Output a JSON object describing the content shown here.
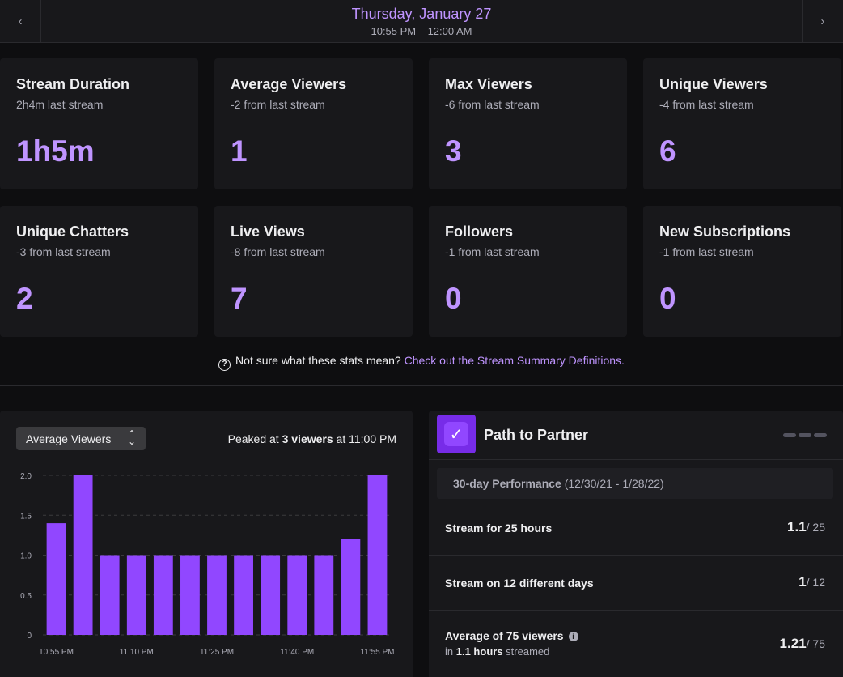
{
  "header": {
    "prev_icon": "chevron-left-icon",
    "next_icon": "chevron-right-icon",
    "date": "Thursday, January 27",
    "time_range": "10:55 PM – 12:00 AM"
  },
  "stats": [
    {
      "title": "Stream Duration",
      "subtitle": "2h4m last stream",
      "value": "1h5m"
    },
    {
      "title": "Average Viewers",
      "subtitle": "-2 from last stream",
      "value": "1"
    },
    {
      "title": "Max Viewers",
      "subtitle": "-6 from last stream",
      "value": "3"
    },
    {
      "title": "Unique Viewers",
      "subtitle": "-4 from last stream",
      "value": "6"
    },
    {
      "title": "Unique Chatters",
      "subtitle": "-3 from last stream",
      "value": "2"
    },
    {
      "title": "Live Views",
      "subtitle": "-8 from last stream",
      "value": "7"
    },
    {
      "title": "Followers",
      "subtitle": "-1 from last stream",
      "value": "0"
    },
    {
      "title": "New Subscriptions",
      "subtitle": "-1 from last stream",
      "value": "0"
    }
  ],
  "help": {
    "text": "Not sure what these stats mean?",
    "link": "Check out the Stream Summary Definitions."
  },
  "chart_panel": {
    "selected_metric": "Average Viewers",
    "peak_prefix": "Peaked at",
    "peak_value": "3 viewers",
    "peak_suffix": "at 11:00 PM"
  },
  "chart_data": {
    "type": "bar",
    "categories": [
      "10:55 PM",
      "11:00 PM",
      "11:05 PM",
      "11:10 PM",
      "11:15 PM",
      "11:20 PM",
      "11:25 PM",
      "11:30 PM",
      "11:35 PM",
      "11:40 PM",
      "11:45 PM",
      "11:50 PM",
      "11:55 PM"
    ],
    "values": [
      1.4,
      2.0,
      1.0,
      1.0,
      1.0,
      1.0,
      1.0,
      1.0,
      1.0,
      1.0,
      1.0,
      1.2,
      2.0
    ],
    "x_tick_labels": [
      "10:55 PM",
      "11:10 PM",
      "11:25 PM",
      "11:40 PM",
      "11:55 PM"
    ],
    "x_tick_indices": [
      0,
      3,
      6,
      9,
      12
    ],
    "y_ticks": [
      0,
      0.5,
      1.0,
      1.5,
      2.0
    ],
    "y_tick_labels": [
      "0",
      "0.5",
      "1.0",
      "1.5",
      "2.0"
    ],
    "ylim": [
      0,
      2.0
    ],
    "grid": true,
    "bar_color": "#9147ff"
  },
  "partner": {
    "title": "Path to Partner",
    "performance_label": "30-day Performance",
    "performance_range": "(12/30/21 - 1/28/22)",
    "requirements": [
      {
        "label": "Stream for 25 hours",
        "current": "1.1",
        "target": "/ 25"
      },
      {
        "label": "Stream on 12 different days",
        "current": "1",
        "target": "/ 12"
      },
      {
        "label": "Average of 75 viewers",
        "current": "1.21",
        "target": "/ 75"
      }
    ],
    "viewers_sub_prefix": "in",
    "viewers_sub_value": "1.1 hours",
    "viewers_sub_suffix": "streamed"
  },
  "colors": {
    "accent": "#bf94ff",
    "bar": "#9147ff",
    "background": "#0e0e10",
    "card": "#18181b"
  }
}
